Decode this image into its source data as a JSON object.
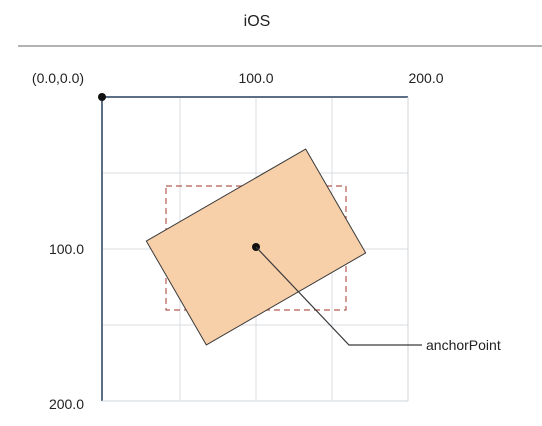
{
  "header": {
    "title": "iOS"
  },
  "axes": {
    "origin_label": "(0.0,0.0)",
    "x_tick_labels": [
      "100.0",
      "200.0"
    ],
    "y_tick_labels": [
      "100.0",
      "200.0"
    ]
  },
  "callout": {
    "label": "anchorPoint"
  },
  "layer": {
    "rotation_degrees": -30
  },
  "colors": {
    "axis": "#5b6f85",
    "grid": "#d8dce0",
    "separator": "#9a9a9a",
    "layer_fill": "#f7cfa9",
    "layer_stroke": "#3a3a3a",
    "bounds_dash": "#b45a52",
    "text": "#222222"
  }
}
